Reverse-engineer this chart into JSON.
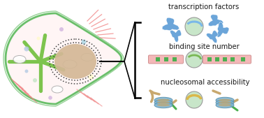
{
  "bg_color": "#ffffff",
  "cell_outer_color": "#6abf6a",
  "cell_fill": "#fff5f5",
  "nucleus_color": "#d4b896",
  "nucleus_border": "#555555",
  "green_arm_color": "#7dc44e",
  "pink_striation": "#f08080",
  "bracket_color": "#000000",
  "text_color": "#1a1a1a",
  "label1": "transcription factors",
  "label2": "binding site number",
  "label3": "nucleosomal accessibility",
  "sphere_color": "#c8e6c9",
  "sphere_edge": "#999999",
  "tf_blue": "#5b9bd5",
  "dna_pink": "#f4b8b8",
  "dna_green": "#4caf50",
  "nucleosome_blue": "#7ab3d4",
  "nucleosome_tan": "#c8a86e",
  "nucleosome_edge": "#5a8fa8"
}
